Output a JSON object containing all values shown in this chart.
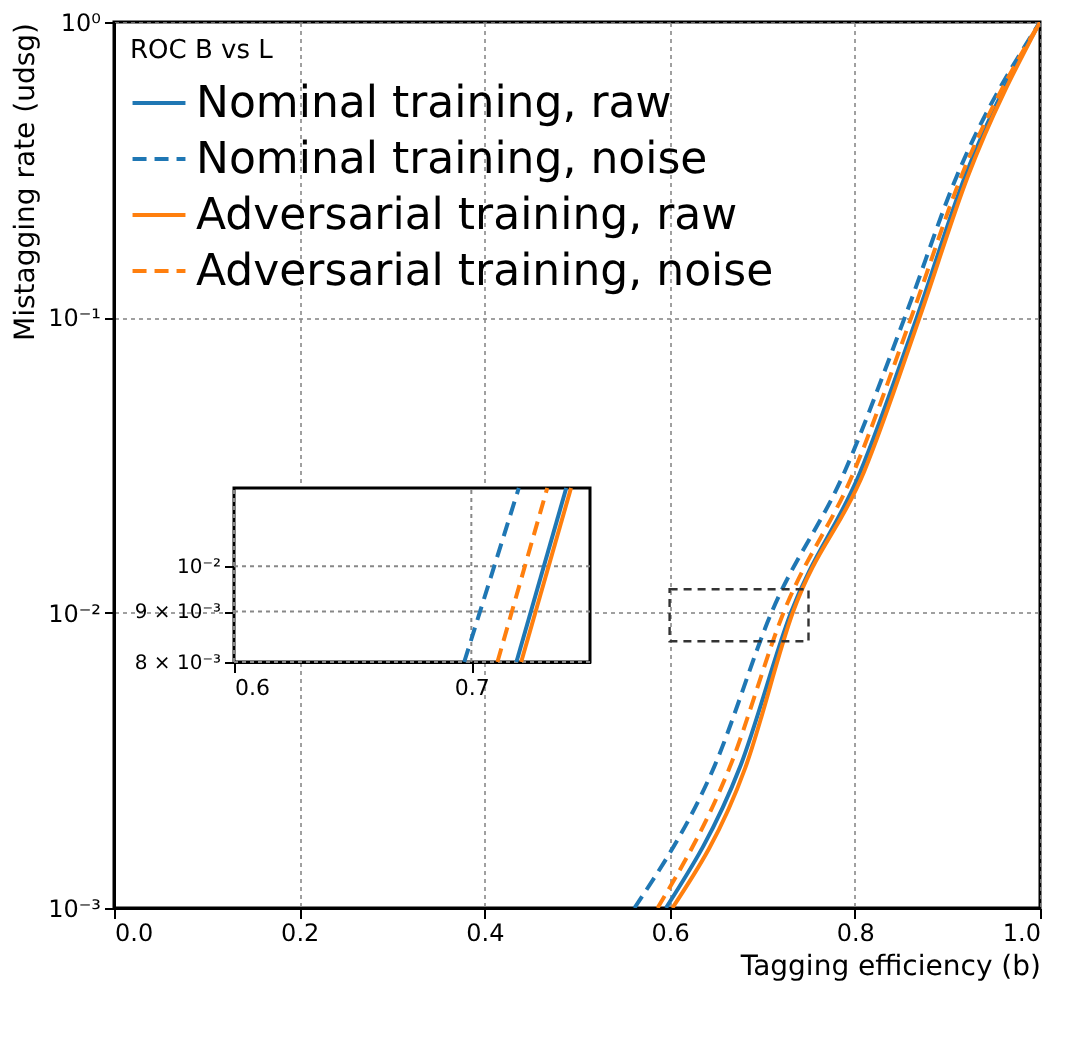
{
  "chart_data": [
    {
      "type": "line",
      "xlabel": "Tagging efficiency (b)",
      "ylabel": "Mistagging rate (udsg)",
      "legend_title": "ROC B vs L",
      "legend": "top left",
      "log": true,
      "grid": true,
      "marker": "none",
      "xlim": [
        0,
        1
      ],
      "xticks": [
        {
          "value": 0,
          "label": "0.0"
        },
        {
          "value": 0.2,
          "label": "0.2"
        },
        {
          "value": 0.4,
          "label": "0.4"
        },
        {
          "value": 0.6,
          "label": "0.6"
        },
        {
          "value": 0.8,
          "label": "0.8"
        },
        {
          "value": 1,
          "label": "1.0"
        }
      ],
      "ylim": [
        0.001,
        1
      ],
      "yticks": [
        {
          "value": 0.001,
          "label": "10⁻³"
        },
        {
          "value": 0.01,
          "label": "10⁻²"
        },
        {
          "value": 0.1,
          "label": "10⁻¹"
        },
        {
          "value": 1,
          "label": "10⁰"
        }
      ],
      "series": [
        {
          "name": "Nominal training, raw",
          "color": "#1f77b4",
          "line_style": "solid",
          "x": [
            0.596,
            0.676,
            0.731,
            0.806,
            0.867,
            0.919,
            1.0
          ],
          "values": [
            0.001,
            0.003,
            0.01,
            0.03,
            0.1,
            0.3,
            1.0
          ]
        },
        {
          "name": "Nominal training, noise",
          "color": "#1f77b4",
          "line_style": "dashed",
          "x": [
            0.562,
            0.648,
            0.71,
            0.789,
            0.854,
            0.91,
            1.0
          ],
          "values": [
            0.001,
            0.003,
            0.01,
            0.03,
            0.1,
            0.3,
            1.0
          ]
        },
        {
          "name": "Adversarial training, raw",
          "color": "#ff7f0e",
          "line_style": "solid",
          "x": [
            0.603,
            0.682,
            0.733,
            0.81,
            0.87,
            0.922,
            1.0
          ],
          "values": [
            0.001,
            0.003,
            0.01,
            0.03,
            0.1,
            0.3,
            1.0
          ]
        },
        {
          "name": "Adversarial training, noise",
          "color": "#ff7f0e",
          "line_style": "dashed",
          "x": [
            0.587,
            0.665,
            0.723,
            0.799,
            0.861,
            0.915,
            1.0
          ],
          "values": [
            0.001,
            0.003,
            0.01,
            0.03,
            0.1,
            0.3,
            1.0
          ]
        }
      ]
    },
    {
      "type": "line",
      "log": true,
      "grid": true,
      "marker": "none",
      "xlim": [
        0.6,
        0.75
      ],
      "xticks": [
        0.6,
        0.7
      ],
      "ylim": [
        0.008,
        0.012
      ],
      "yticks": [
        {
          "value": 0.008,
          "label": "8 × 10⁻³"
        },
        {
          "value": 0.009,
          "label": "9 × 10⁻³"
        },
        {
          "value": 0.01,
          "label": "10⁻²"
        }
      ],
      "series": [
        {
          "color": "#1f77b4",
          "line_style": "solid",
          "x": [
            0.719,
            0.74
          ],
          "values": [
            0.008,
            0.012
          ]
        },
        {
          "color": "#1f77b4",
          "line_style": "dashed",
          "x": [
            0.697,
            0.72
          ],
          "values": [
            0.008,
            0.012
          ]
        },
        {
          "color": "#ff7f0e",
          "line_style": "solid",
          "x": [
            0.721,
            0.742
          ],
          "values": [
            0.008,
            0.012
          ]
        },
        {
          "color": "#ff7f0e",
          "line_style": "dashed",
          "x": [
            0.711,
            0.732
          ],
          "values": [
            0.008,
            0.012
          ]
        }
      ]
    }
  ]
}
